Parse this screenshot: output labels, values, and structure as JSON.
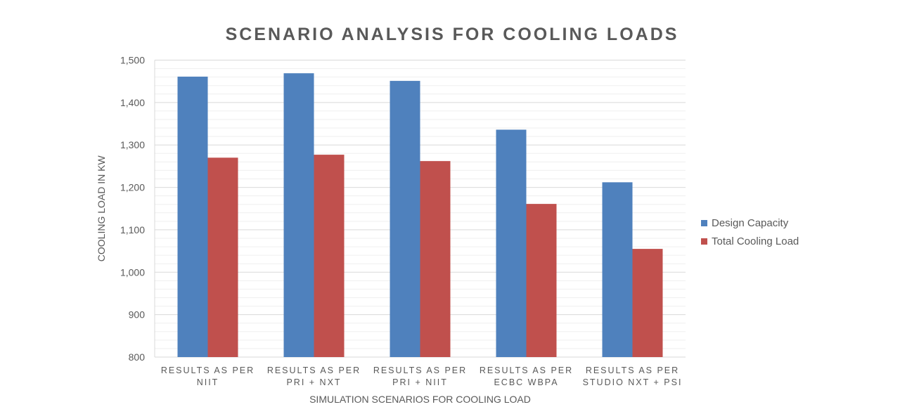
{
  "chart_data": {
    "type": "bar",
    "title": "SCENARIO ANALYSIS FOR COOLING LOADS",
    "xlabel": "SIMULATION SCENARIOS FOR COOLING LOAD",
    "ylabel": "COOLING LOAD IN KW",
    "ylim": [
      800,
      1500
    ],
    "yticks": [
      "800",
      "900",
      "1,000",
      "1,100",
      "1,200",
      "1,300",
      "1,400",
      "1,500"
    ],
    "grid": true,
    "legend": "right",
    "categories": [
      [
        "RESULTS AS PER",
        "NIIT"
      ],
      [
        "RESULTS AS PER",
        "PRI + NXT"
      ],
      [
        "RESULTS AS PER",
        "PRI + NIIT"
      ],
      [
        "RESULTS AS PER",
        "ECBC WBPA"
      ],
      [
        "RESULTS AS PER",
        "STUDIO NXT + PSI"
      ]
    ],
    "series": [
      {
        "name": "Design Capacity",
        "color": "#4F81BD",
        "values": [
          1461,
          1469,
          1451,
          1336,
          1212
        ]
      },
      {
        "name": "Total Cooling Load",
        "color": "#C0504D",
        "values": [
          1270,
          1277,
          1262,
          1161,
          1055
        ]
      }
    ]
  }
}
